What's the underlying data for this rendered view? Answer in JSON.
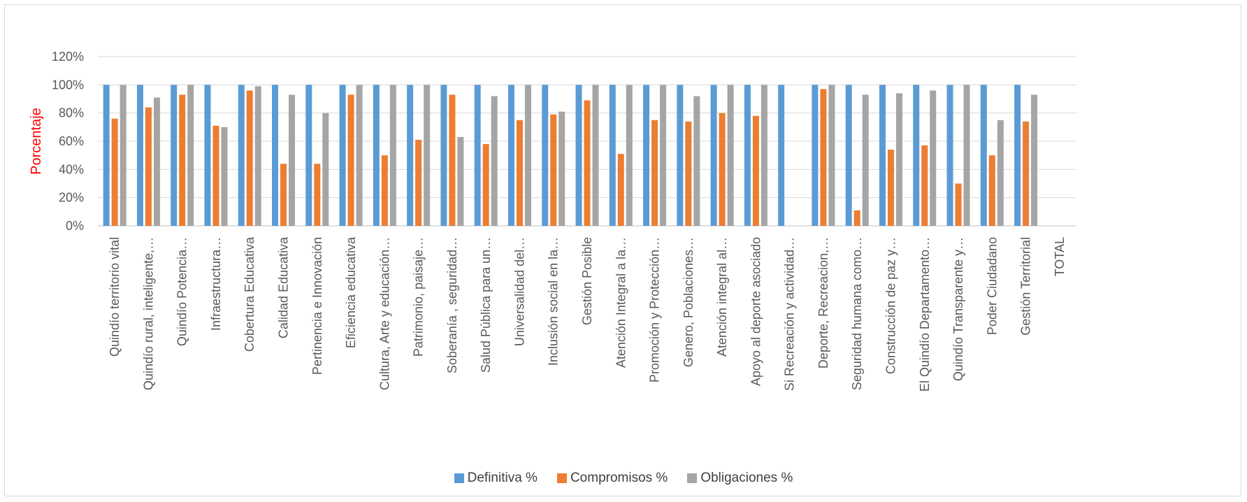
{
  "chart_data": {
    "type": "bar",
    "title": "",
    "xlabel": "",
    "ylabel": "Porcentaje",
    "ylim": [
      0,
      120
    ],
    "y_tick_labels": [
      "0%",
      "20%",
      "40%",
      "60%",
      "80%",
      "100%",
      "120%"
    ],
    "grid": true,
    "legend_position": "bottom",
    "categories": [
      "Quindío territorio vital",
      "Quindío rural, inteligente,…",
      "Quindío Potencia…",
      "Infraestructura…",
      "Cobertura Educativa",
      "Calidad Educativa",
      "Pertinencia e Innovación",
      "Eficiencia educativa",
      "Cultura, Arte y educación…",
      "Patrimonio, paisaje…",
      "Soberanía , seguridad…",
      "Salud Pública para un…",
      "Universalidad  del…",
      "Inclusión social en la…",
      "Gestión Posible",
      "Atención Integral a la…",
      "Promoción y  Protección…",
      "Genero, Poblaciones…",
      "Atención integral al…",
      "Apoyo al deporte asociado",
      "Si Recreación y actividad…",
      "Deporte, Recreacion,…",
      "Seguridad humana como…",
      "Construcción de paz y…",
      "El Quindío Departamento…",
      "Quindío Transparente y…",
      "Poder Ciudadano",
      "Gestión Territorial",
      "TOTAL"
    ],
    "series": [
      {
        "name": "Definitiva %",
        "color": "#5b9bd5",
        "values": [
          100,
          100,
          100,
          100,
          100,
          100,
          100,
          100,
          100,
          100,
          100,
          100,
          100,
          100,
          100,
          100,
          100,
          100,
          100,
          100,
          100,
          100,
          100,
          100,
          100,
          100,
          100,
          100,
          null
        ]
      },
      {
        "name": "Compromisos %",
        "color": "#ed7d31",
        "values": [
          76,
          84,
          93,
          71,
          96,
          44,
          44,
          93,
          50,
          61,
          93,
          58,
          75,
          79,
          89,
          51,
          75,
          74,
          80,
          78,
          0,
          97,
          11,
          54,
          57,
          30,
          50,
          74,
          null
        ]
      },
      {
        "name": "Obligaciones %",
        "color": "#a5a5a5",
        "values": [
          100,
          91,
          100,
          70,
          99,
          93,
          80,
          100,
          100,
          100,
          63,
          92,
          100,
          81,
          100,
          100,
          100,
          92,
          100,
          100,
          0,
          100,
          93,
          94,
          96,
          100,
          75,
          93,
          null
        ]
      }
    ]
  }
}
